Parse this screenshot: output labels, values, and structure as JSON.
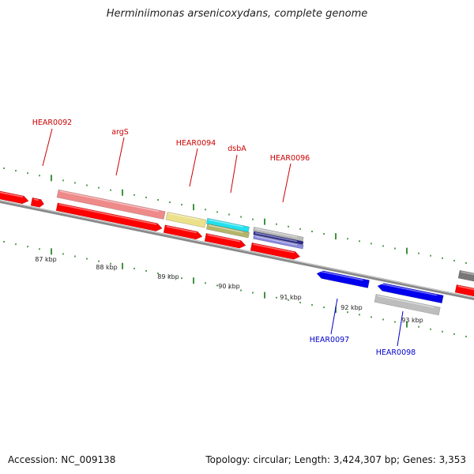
{
  "title": "Herminiimonas arsenicoxydans, complete genome",
  "footer": {
    "accession": "Accession: NC_009138",
    "topology": "Topology: circular; Length: 3,424,307 bp; Genes: 3,353"
  },
  "colors": {
    "forward_label": "#cc0000",
    "reverse_label": "#0000cc",
    "cds_forward": "#ff0000",
    "cds_reverse": "#0000ee",
    "backbone": "#888888",
    "ticks": "#117711"
  },
  "tick_labels": [
    "87 kbp",
    "88 kbp",
    "89 kbp",
    "90 kbp",
    "91 kbp",
    "92 kbp",
    "93 kbp"
  ],
  "gene_labels": [
    {
      "name": "HEAR0092",
      "strand": "forward"
    },
    {
      "name": "argS",
      "strand": "forward"
    },
    {
      "name": "HEAR0094",
      "strand": "forward"
    },
    {
      "name": "dsbA",
      "strand": "forward"
    },
    {
      "name": "HEAR0096",
      "strand": "forward"
    },
    {
      "name": "HEAR0097",
      "strand": "reverse"
    },
    {
      "name": "HEAR0098",
      "strand": "reverse"
    }
  ]
}
